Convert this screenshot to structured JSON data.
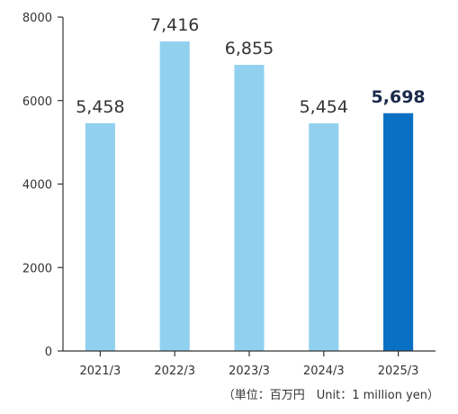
{
  "chart_data": {
    "type": "bar",
    "title": "",
    "xlabel": "",
    "ylabel": "",
    "categories": [
      "2021/3",
      "2022/3",
      "2023/3",
      "2024/3",
      "2025/3"
    ],
    "values": [
      5458,
      7416,
      6855,
      5454,
      5698
    ],
    "value_labels": [
      "5,458",
      "7,416",
      "6,855",
      "5,454",
      "5,698"
    ],
    "highlight_index": 4,
    "ylim": [
      0,
      8000
    ],
    "yticks": [
      0,
      2000,
      4000,
      6000,
      8000
    ],
    "ytick_labels": [
      "0",
      "2000",
      "4000",
      "6000",
      "8000"
    ],
    "grid": false,
    "colors": {
      "bar": "#92d0ef",
      "bar_highlight": "#0a70c4"
    },
    "unit_note": "（単位：百万円　Unit：1 million yen）"
  }
}
